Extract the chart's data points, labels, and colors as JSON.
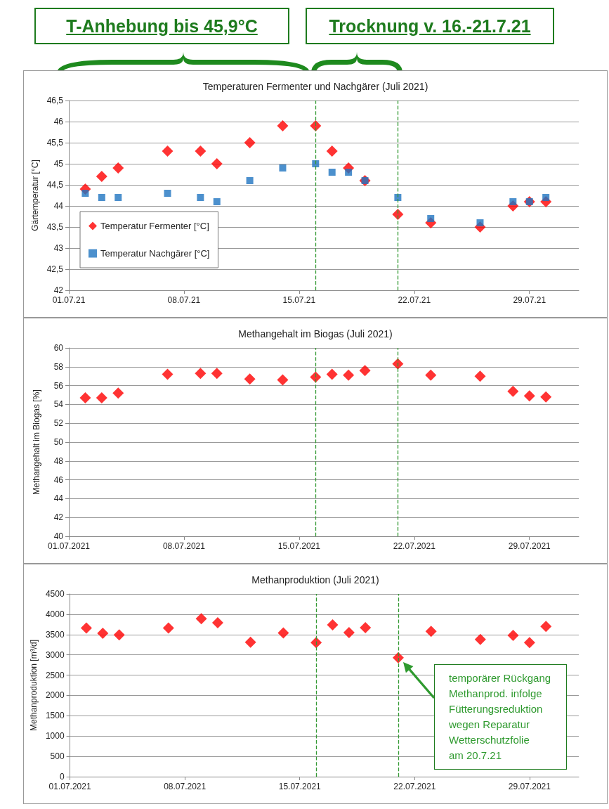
{
  "chart_data": [
    {
      "type": "scatter",
      "title": "Temperaturen Fermenter und Nachgärer (Juli 2021)",
      "ylabel": "Gärtemperatur [°C]",
      "annotations": [
        "T-Anhebung bis 45,9°C",
        "Trocknung v. 16.-21.7.21"
      ],
      "x": [
        "2021-07-02",
        "2021-07-03",
        "2021-07-04",
        "2021-07-07",
        "2021-07-09",
        "2021-07-10",
        "2021-07-12",
        "2021-07-14",
        "2021-07-16",
        "2021-07-17",
        "2021-07-18",
        "2021-07-19",
        "2021-07-21",
        "2021-07-23",
        "2021-07-26",
        "2021-07-28",
        "2021-07-29",
        "2021-07-30"
      ],
      "series": [
        {
          "name": "Temperatur Fermenter [°C]",
          "color": "#ff0000",
          "marker": "diamond",
          "values": [
            44.4,
            44.7,
            44.9,
            45.3,
            45.3,
            45.0,
            45.5,
            45.9,
            45.9,
            45.3,
            44.9,
            44.6,
            43.8,
            43.6,
            43.5,
            44.0,
            44.1,
            44.1
          ]
        },
        {
          "name": "Temperatur Nachgärer [°C]",
          "color": "#1f74c0",
          "marker": "square",
          "values": [
            44.3,
            44.2,
            44.2,
            44.3,
            44.2,
            44.1,
            44.6,
            44.9,
            45.0,
            44.8,
            44.8,
            44.6,
            44.2,
            43.7,
            43.6,
            44.1,
            44.1,
            44.2
          ]
        }
      ],
      "xlim": [
        "2021-07-01",
        "2021-08-01"
      ],
      "xticks": [
        {
          "value": "2021-07-01",
          "label": "01.07.21"
        },
        {
          "value": "2021-07-08",
          "label": "08.07.21"
        },
        {
          "value": "2021-07-15",
          "label": "15.07.21"
        },
        {
          "value": "2021-07-22",
          "label": "22.07.21"
        },
        {
          "value": "2021-07-29",
          "label": "29.07.21"
        }
      ],
      "ylim": [
        42,
        46.5
      ],
      "yticks": [
        42,
        {
          "value": 42.5,
          "label": "42,5"
        },
        43,
        {
          "value": 43.5,
          "label": "43,5"
        },
        44,
        {
          "value": 44.5,
          "label": "44,5"
        },
        45,
        {
          "value": 45.5,
          "label": "45,5"
        },
        46,
        {
          "value": 46.5,
          "label": "46,5"
        }
      ],
      "ref_lines": [
        {
          "axis": "x",
          "value": "2021-07-16",
          "color": "#339933",
          "line_style": "dashed"
        },
        {
          "axis": "x",
          "value": "2021-07-21",
          "color": "#339933",
          "line_style": "dashed"
        }
      ],
      "grid": "y",
      "legend": "bottom left"
    },
    {
      "type": "scatter",
      "title": "Methangehalt im Biogas (Juli 2021)",
      "ylabel": "Methangehalt im Biogas [%]",
      "color": "#ff0000",
      "marker": "diamond",
      "x": [
        "2021-07-02",
        "2021-07-03",
        "2021-07-04",
        "2021-07-07",
        "2021-07-09",
        "2021-07-10",
        "2021-07-12",
        "2021-07-14",
        "2021-07-16",
        "2021-07-17",
        "2021-07-18",
        "2021-07-19",
        "2021-07-21",
        "2021-07-23",
        "2021-07-26",
        "2021-07-28",
        "2021-07-29",
        "2021-07-30"
      ],
      "values": [
        54.7,
        54.7,
        55.2,
        57.2,
        57.3,
        57.3,
        56.7,
        56.6,
        56.9,
        57.2,
        57.1,
        57.6,
        58.3,
        57.1,
        57.0,
        55.4,
        54.9,
        54.8
      ],
      "xlim": [
        "2021-07-01",
        "2021-08-01"
      ],
      "xticks": [
        {
          "value": "2021-07-01",
          "label": "01.07.2021"
        },
        {
          "value": "2021-07-08",
          "label": "08.07.2021"
        },
        {
          "value": "2021-07-15",
          "label": "15.07.2021"
        },
        {
          "value": "2021-07-22",
          "label": "22.07.2021"
        },
        {
          "value": "2021-07-29",
          "label": "29.07.2021"
        }
      ],
      "ylim": [
        40,
        60
      ],
      "yticks": [
        40,
        42,
        44,
        46,
        48,
        50,
        52,
        54,
        56,
        58,
        60
      ],
      "ref_lines": [
        {
          "axis": "x",
          "value": "2021-07-16",
          "color": "#339933",
          "line_style": "dashed"
        },
        {
          "axis": "x",
          "value": "2021-07-21",
          "color": "#339933",
          "line_style": "dashed"
        }
      ],
      "grid": "y"
    },
    {
      "type": "scatter",
      "title": "Methanproduktion (Juli 2021)",
      "ylabel": "Methanproduktion [m³/d]",
      "color": "#ff0000",
      "marker": "diamond",
      "annotations": [
        "temporärer Rückgang\nMethanprod. infolge\nFütterungsreduktion\nwegen Reparatur\nWetterschutzfolie\nam 20.7.21"
      ],
      "x": [
        "2021-07-02",
        "2021-07-03",
        "2021-07-04",
        "2021-07-07",
        "2021-07-09",
        "2021-07-10",
        "2021-07-12",
        "2021-07-14",
        "2021-07-16",
        "2021-07-17",
        "2021-07-18",
        "2021-07-19",
        "2021-07-21",
        "2021-07-23",
        "2021-07-26",
        "2021-07-28",
        "2021-07-29",
        "2021-07-30"
      ],
      "values": [
        3660,
        3530,
        3490,
        3660,
        3890,
        3790,
        3310,
        3540,
        3300,
        3740,
        3550,
        3670,
        2930,
        3580,
        3380,
        3480,
        3300,
        3700
      ],
      "xlim": [
        "2021-07-01",
        "2021-08-01"
      ],
      "xticks": [
        {
          "value": "2021-07-01",
          "label": "01.07.2021"
        },
        {
          "value": "2021-07-08",
          "label": "08.07.2021"
        },
        {
          "value": "2021-07-15",
          "label": "15.07.2021"
        },
        {
          "value": "2021-07-22",
          "label": "22.07.2021"
        },
        {
          "value": "2021-07-29",
          "label": "29.07.2021"
        }
      ],
      "ylim": [
        0,
        4500
      ],
      "yticks": [
        0,
        500,
        1000,
        1500,
        2000,
        2500,
        3000,
        3500,
        4000,
        4500
      ],
      "ref_lines": [
        {
          "axis": "x",
          "value": "2021-07-16",
          "color": "#339933",
          "line_style": "dashed"
        },
        {
          "axis": "x",
          "value": "2021-07-21",
          "color": "#339933",
          "line_style": "dashed"
        }
      ],
      "grid": "y"
    }
  ]
}
